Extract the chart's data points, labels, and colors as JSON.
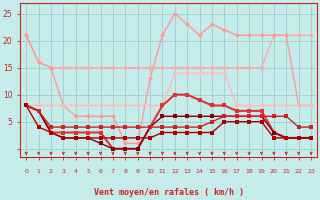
{
  "xlabel": "Vent moyen/en rafales ( km/h )",
  "bg_color": "#c5ecea",
  "grid_color": "#a0d4d0",
  "xlim": [
    -0.5,
    23.5
  ],
  "ylim": [
    -1.5,
    27
  ],
  "yticks": [
    0,
    5,
    10,
    15,
    20,
    25
  ],
  "xticks": [
    0,
    1,
    2,
    3,
    4,
    5,
    6,
    7,
    8,
    9,
    10,
    11,
    12,
    13,
    14,
    15,
    16,
    17,
    18,
    19,
    20,
    21,
    22,
    23
  ],
  "line1_x": [
    0,
    1,
    2,
    3,
    4,
    5,
    6,
    7,
    8,
    9,
    10,
    11,
    12,
    13,
    14,
    15,
    16,
    17,
    18,
    19,
    20,
    21,
    22,
    23
  ],
  "line1_y": [
    21,
    16,
    15,
    15,
    15,
    15,
    15,
    15,
    15,
    15,
    15,
    15,
    15,
    15,
    15,
    15,
    15,
    15,
    15,
    15,
    21,
    21,
    21,
    21
  ],
  "line1_color": "#ffaaaa",
  "line1_lw": 1.0,
  "line2_x": [
    0,
    1,
    2,
    3,
    4,
    5,
    6,
    7,
    8,
    9,
    10,
    11,
    12,
    13,
    14,
    15,
    16,
    17,
    18,
    19,
    20,
    21,
    22,
    23
  ],
  "line2_y": [
    21,
    16,
    15,
    8,
    6,
    6,
    6,
    6,
    1,
    1,
    13,
    21,
    25,
    23,
    21,
    23,
    22,
    21,
    21,
    21,
    21,
    21,
    8,
    8
  ],
  "line2_color": "#ff9999",
  "line2_lw": 1.0,
  "line3_x": [
    0,
    1,
    2,
    3,
    4,
    5,
    6,
    7,
    8,
    9,
    10,
    11,
    12,
    13,
    14,
    15,
    16,
    17,
    18,
    19,
    20,
    21,
    22,
    23
  ],
  "line3_y": [
    8,
    8,
    8,
    8,
    8,
    8,
    8,
    8,
    8,
    8,
    8,
    8,
    14,
    14,
    14,
    14,
    14,
    8,
    8,
    8,
    8,
    8,
    8,
    8
  ],
  "line3_color": "#ffbbbb",
  "line3_lw": 1.0,
  "line4_x": [
    0,
    1,
    2,
    3,
    4,
    5,
    6,
    7,
    8,
    9,
    10,
    11,
    12,
    13,
    14,
    15,
    16,
    17,
    18,
    19,
    20,
    21,
    22,
    23
  ],
  "line4_y": [
    8,
    7,
    3,
    3,
    3,
    3,
    3,
    0,
    0,
    0,
    4,
    8,
    10,
    10,
    9,
    8,
    8,
    7,
    7,
    7,
    3,
    2,
    2,
    2
  ],
  "line4_color": "#dd3333",
  "line4_lw": 1.5,
  "line5_x": [
    0,
    1,
    2,
    3,
    4,
    5,
    6,
    7,
    8,
    9,
    10,
    11,
    12,
    13,
    14,
    15,
    16,
    17,
    18,
    19,
    20,
    21,
    22,
    23
  ],
  "line5_y": [
    8,
    7,
    3,
    2,
    2,
    2,
    1,
    0,
    0,
    0,
    4,
    6,
    6,
    6,
    6,
    6,
    6,
    6,
    6,
    6,
    3,
    2,
    2,
    2
  ],
  "line5_color": "#880000",
  "line5_lw": 1.0,
  "line6_x": [
    0,
    1,
    2,
    3,
    4,
    5,
    6,
    7,
    8,
    9,
    10,
    11,
    12,
    13,
    14,
    15,
    16,
    17,
    18,
    19,
    20,
    21,
    22,
    23
  ],
  "line6_y": [
    8,
    7,
    4,
    4,
    4,
    4,
    4,
    4,
    4,
    4,
    4,
    4,
    4,
    4,
    4,
    5,
    6,
    6,
    6,
    6,
    6,
    6,
    4,
    4
  ],
  "line6_color": "#cc2222",
  "line6_lw": 1.0,
  "line7_x": [
    0,
    1,
    2,
    3,
    4,
    5,
    6,
    7,
    8,
    9,
    10,
    11,
    12,
    13,
    14,
    15,
    16,
    17,
    18,
    19,
    20,
    21,
    22,
    23
  ],
  "line7_y": [
    8,
    4,
    3,
    2,
    2,
    2,
    2,
    2,
    2,
    2,
    2,
    3,
    3,
    3,
    3,
    3,
    5,
    5,
    5,
    5,
    2,
    2,
    2,
    2
  ],
  "line7_color": "#aa0000",
  "line7_lw": 1.0,
  "arrows_color": "#cc0000",
  "axis_color": "#cc2222",
  "tick_color": "#cc2222",
  "label_color": "#cc2222"
}
